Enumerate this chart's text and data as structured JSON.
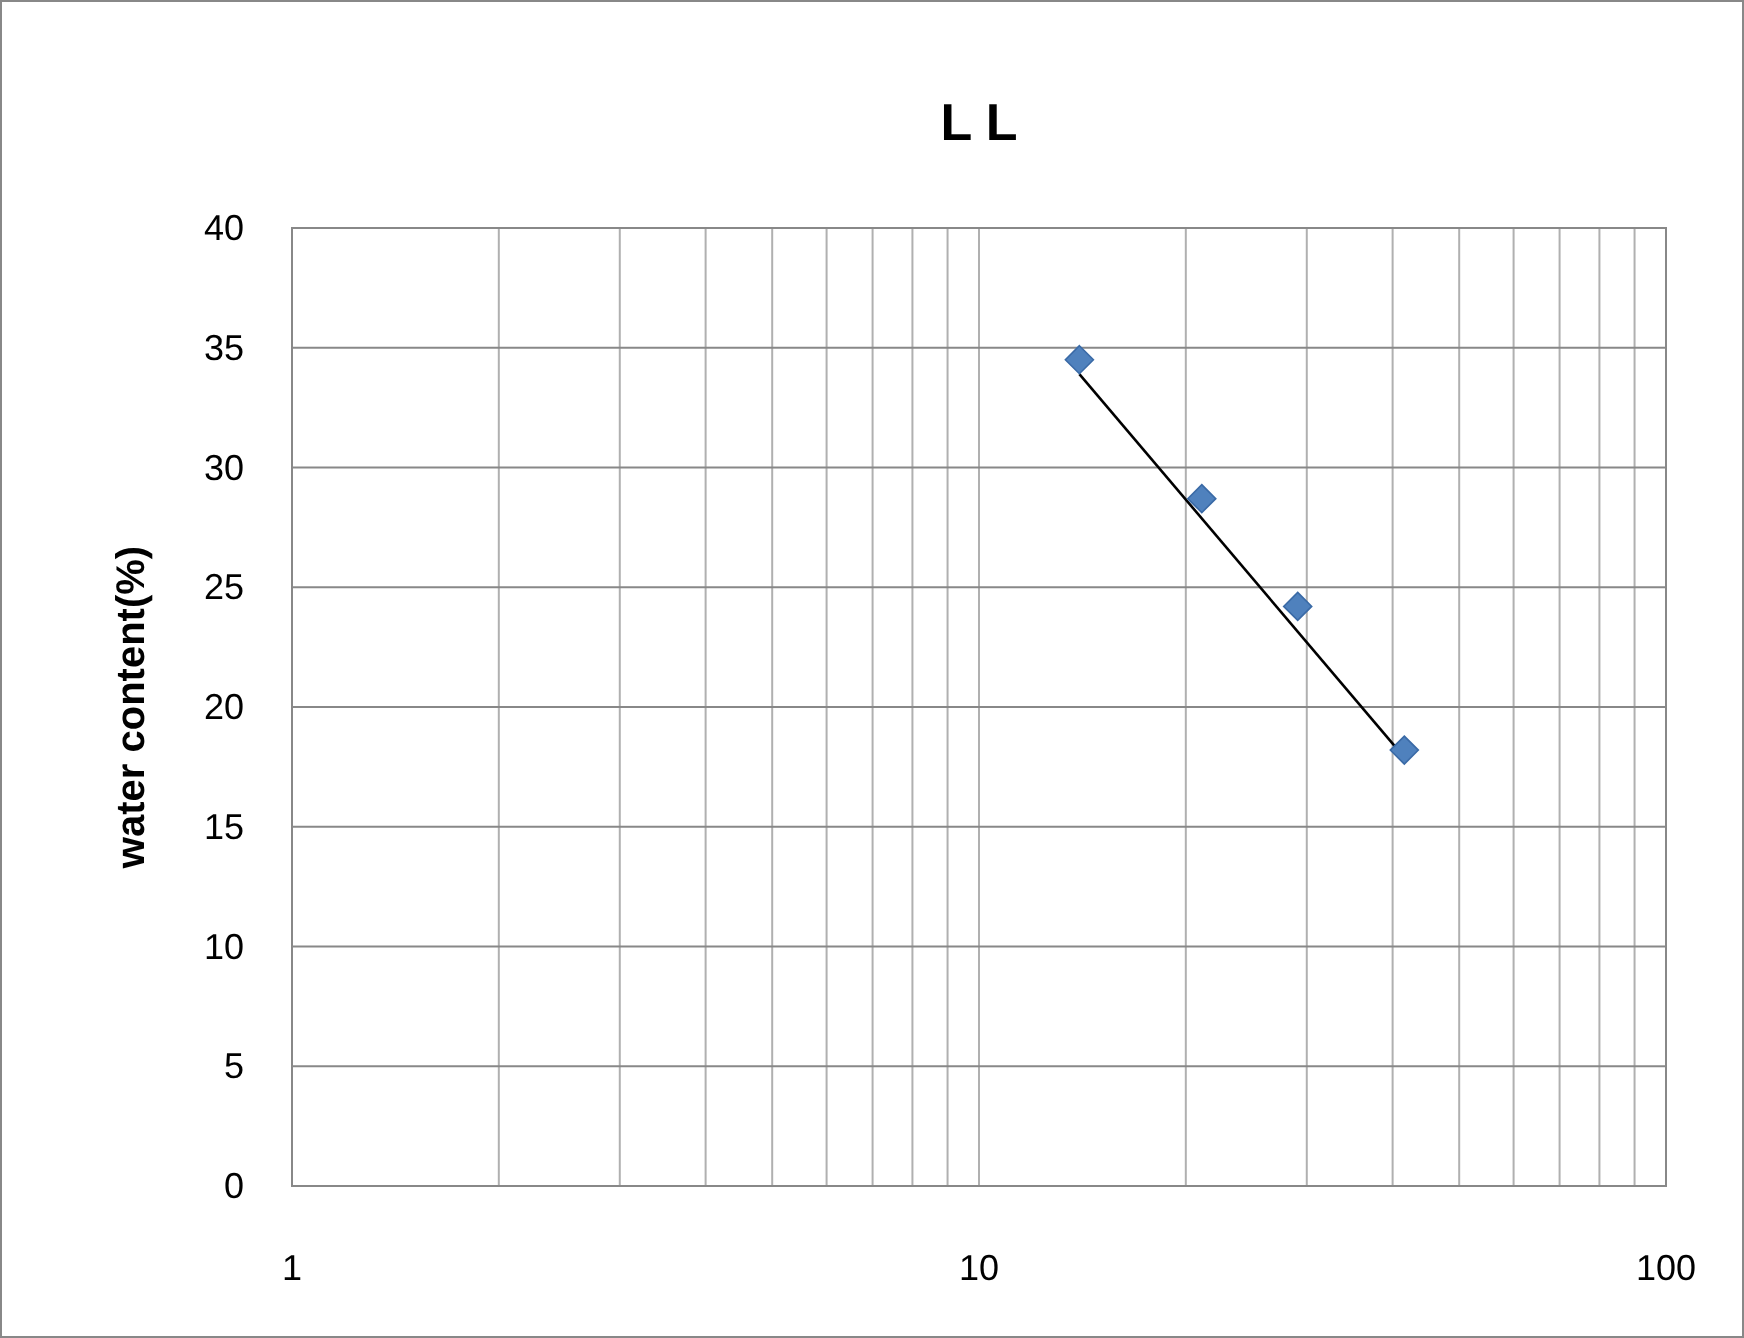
{
  "chart_data": {
    "type": "scatter",
    "title": "L L",
    "ylabel": "water content(%)",
    "log": "x",
    "xlim": [
      1,
      100
    ],
    "xticks": [
      1,
      {
        "value": 2,
        "label": null
      },
      {
        "value": 3,
        "label": null
      },
      {
        "value": 4,
        "label": null
      },
      {
        "value": 5,
        "label": null
      },
      {
        "value": 6,
        "label": null
      },
      {
        "value": 7,
        "label": null
      },
      {
        "value": 8,
        "label": null
      },
      {
        "value": 9,
        "label": null
      },
      10,
      {
        "value": 20,
        "label": null
      },
      {
        "value": 30,
        "label": null
      },
      {
        "value": 40,
        "label": null
      },
      {
        "value": 50,
        "label": null
      },
      {
        "value": 60,
        "label": null
      },
      {
        "value": 70,
        "label": null
      },
      {
        "value": 80,
        "label": null
      },
      {
        "value": 90,
        "label": null
      },
      100
    ],
    "ylim": [
      0,
      40
    ],
    "yticks": [
      0,
      5,
      10,
      15,
      20,
      25,
      30,
      35,
      40
    ],
    "grid": true,
    "series": [
      {
        "color": "#4f81bd",
        "marker": "diamond",
        "x": [
          14.0,
          21.1,
          29.1,
          41.6
        ],
        "values": [
          34.5,
          28.7,
          24.2,
          18.2
        ]
      },
      {
        "type": "line",
        "color": "#000000",
        "marker": "none",
        "line_style": "solid",
        "x": [
          14.0,
          41.6
        ],
        "values": [
          33.9,
          17.9
        ]
      }
    ]
  }
}
